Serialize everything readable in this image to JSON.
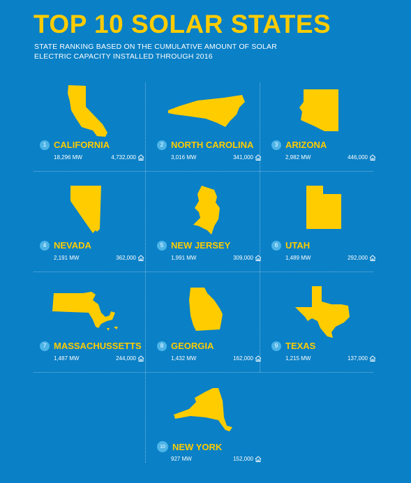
{
  "header": {
    "title": "TOP 10 SOLAR STATES",
    "subtitle": "STATE RANKING BASED ON THE CUMULATIVE AMOUNT OF SOLAR ELECTRIC CAPACITY INSTALLED THROUGH 2016"
  },
  "colors": {
    "background": "#0a80c6",
    "accent": "#ffcc00",
    "rank_badge": "#4db4e8"
  },
  "states": [
    {
      "rank": "1",
      "name": "CALIFORNIA",
      "mw": "18,296 MW",
      "homes": "4,732,000"
    },
    {
      "rank": "2",
      "name": "NORTH CAROLINA",
      "mw": "3,016 MW",
      "homes": "341,000"
    },
    {
      "rank": "3",
      "name": "ARIZONA",
      "mw": "2,982 MW",
      "homes": "446,000"
    },
    {
      "rank": "4",
      "name": "NEVADA",
      "mw": "2,191 MW",
      "homes": "362,000"
    },
    {
      "rank": "5",
      "name": "NEW JERSEY",
      "mw": "1,991 MW",
      "homes": "309,000"
    },
    {
      "rank": "6",
      "name": "UTAH",
      "mw": "1,489 MW",
      "homes": "292,000"
    },
    {
      "rank": "7",
      "name": "MASSACHUSSETTS",
      "mw": "1,487 MW",
      "homes": "244,000"
    },
    {
      "rank": "8",
      "name": "GEORGIA",
      "mw": "1,432 MW",
      "homes": "162,000"
    },
    {
      "rank": "9",
      "name": "TEXAS",
      "mw": "1,215 MW",
      "homes": "137,000"
    },
    {
      "rank": "10",
      "name": "NEW YORK",
      "mw": "927 MW",
      "homes": "152,000"
    }
  ],
  "icons": {
    "home": "house-icon"
  }
}
